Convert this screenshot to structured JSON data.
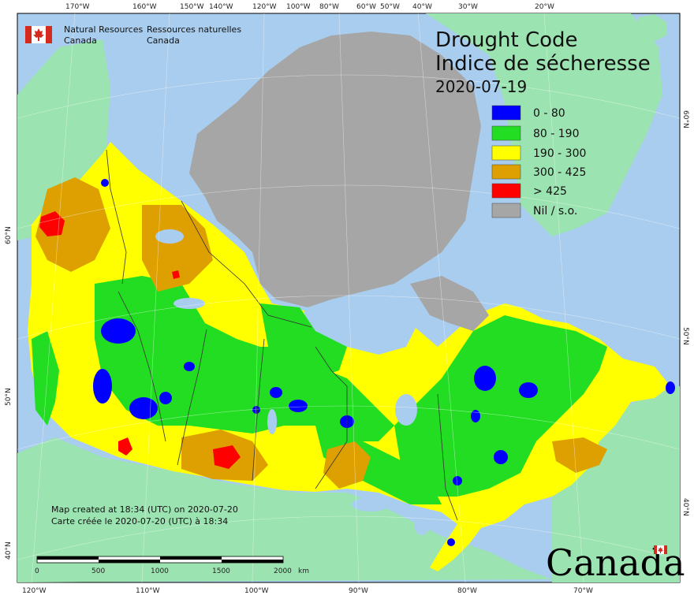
{
  "title_en": "Drought Code",
  "title_fr": "Indice de sécheresse",
  "date": "2020-07-19",
  "agency": {
    "en_line1": "Natural Resources",
    "en_line2": "Canada",
    "fr_line1": "Ressources naturelles",
    "fr_line2": "Canada"
  },
  "legend": [
    {
      "label": "0 - 80",
      "color": "#0000ff"
    },
    {
      "label": "80 - 190",
      "color": "#22dd22"
    },
    {
      "label": "190 - 300",
      "color": "#ffff00"
    },
    {
      "label": "300 - 425",
      "color": "#dda000"
    },
    {
      "label": "> 425",
      "color": "#ff0000"
    },
    {
      "label": "Nil / s.o.",
      "color": "#a6a6a6"
    }
  ],
  "credits": {
    "en": "Map created at 18:34 (UTC) on 2020-07-20",
    "fr": "Carte créée le 2020-07-20 (UTC) à 18:34"
  },
  "scalebar": {
    "ticks": [
      "0",
      "500",
      "1000",
      "1500",
      "2000"
    ],
    "unit": "km"
  },
  "top_ticks": [
    "170°W",
    "160°W",
    "150°W",
    "140°W",
    "120°W",
    "100°W",
    "80°W",
    "60°W",
    "50°W",
    "40°W",
    "30°W",
    "20°W"
  ],
  "top_extra": [
    "110°W",
    "90°W",
    "70°W"
  ],
  "bottom_ticks": [
    "120°W",
    "110°W",
    "100°W",
    "90°W",
    "80°W",
    "70°W"
  ],
  "left_ticks": [
    "60°N",
    "50°N",
    "40°N"
  ],
  "right_ticks": [
    "60°N",
    "50°N",
    "40°N"
  ],
  "wordmark": "Canada",
  "colors": {
    "ocean": "#a9cdee",
    "land_other": "#9be3b0",
    "nil": "#a6a6a6"
  }
}
